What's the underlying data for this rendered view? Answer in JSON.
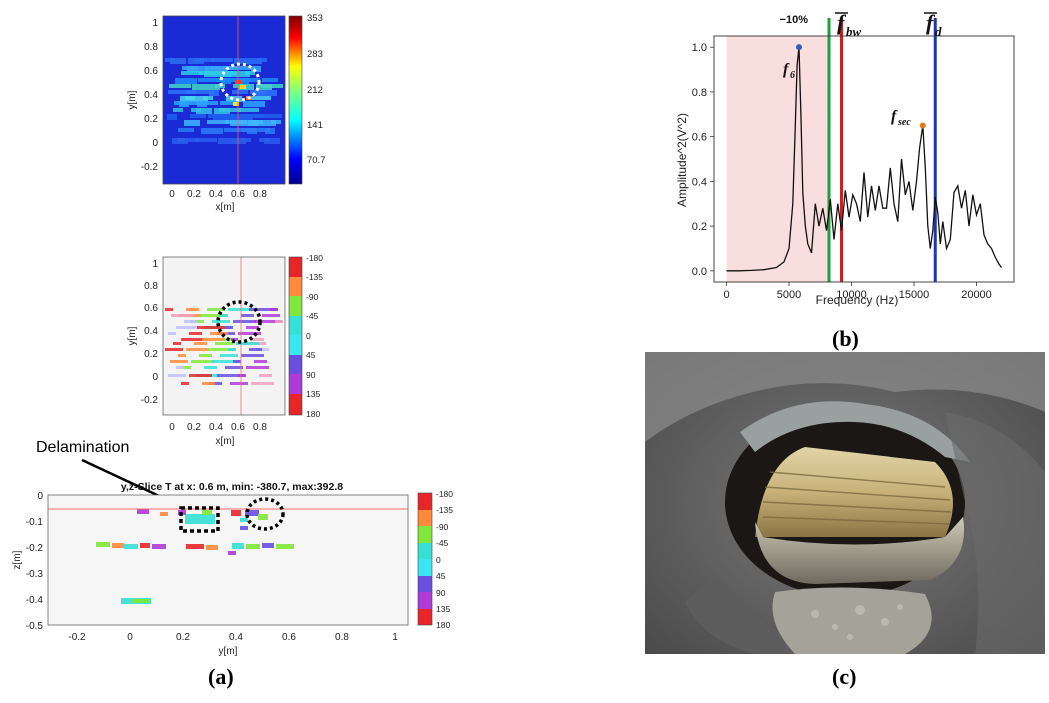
{
  "panel_a": {
    "caption": "(a)",
    "amplitude_map": {
      "xlabel": "x[m]",
      "ylabel": "y[m]",
      "xticks": [
        "0",
        "0.2",
        "0.4",
        "0.6",
        "0.8"
      ],
      "yticks": [
        "1",
        "0.8",
        "0.6",
        "0.4",
        "0.2",
        "0",
        "-0.2"
      ],
      "colorbar_ticks": [
        "353",
        "283",
        "212",
        "141",
        "70.7"
      ]
    },
    "phase_map": {
      "xlabel": "x[m]",
      "ylabel": "y[m]",
      "xticks": [
        "0",
        "0.2",
        "0.4",
        "0.6",
        "0.8"
      ],
      "yticks": [
        "1",
        "0.8",
        "0.6",
        "0.4",
        "0.2",
        "0",
        "-0.2"
      ],
      "colorbar_ticks": [
        "-180",
        "-135",
        "-90",
        "-45",
        "0",
        "45",
        "90",
        "135",
        "180"
      ]
    },
    "slice": {
      "title": "y,z-Slice T at x: 0.6 m, min: -380.7, max:392.8",
      "annotation": "Delamination",
      "xlabel": "y[m]",
      "ylabel": "z[m]",
      "xticks": [
        "-0.2",
        "0",
        "0.2",
        "0.4",
        "0.6",
        "0.8",
        "1"
      ],
      "yticks": [
        "0",
        "-0.1",
        "-0.2",
        "-0.3",
        "-0.4",
        "-0.5"
      ],
      "colorbar_ticks": [
        "-180",
        "-135",
        "-90",
        "-45",
        "0",
        "45",
        "90",
        "135",
        "180"
      ]
    }
  },
  "panel_b": {
    "caption": "(b)"
  },
  "panel_c": {
    "caption": "(c)"
  },
  "chart_data": {
    "type": "line",
    "xlabel": "Frequency (Hz)",
    "ylabel": "Amplitude^2(V^2)",
    "xlim": [
      -1000,
      23000
    ],
    "ylim": [
      -0.05,
      1.05
    ],
    "xticks": [
      "0",
      "5000",
      "10000",
      "15000",
      "20000"
    ],
    "yticks": [
      "0.0",
      "0.2",
      "0.4",
      "0.6",
      "0.8",
      "1.0"
    ],
    "shaded_region": {
      "from": 0,
      "to": 8200,
      "color": "#f9dede"
    },
    "vlines": [
      {
        "x": 8200,
        "color": "#1f9e3a",
        "label": "−10%"
      },
      {
        "x": 9200,
        "color": "#cc1f1f",
        "label": "f̄bw"
      },
      {
        "x": 16700,
        "color": "#1f35b0",
        "label": "f̄d"
      }
    ],
    "peaks": [
      {
        "x": 5800,
        "y": 1.0,
        "label": "f6",
        "color": "#2d5fb8"
      },
      {
        "x": 15700,
        "y": 0.65,
        "label": "fsec",
        "color": "#e07b1a"
      }
    ],
    "series": [
      {
        "x": [
          0,
          1000,
          2000,
          3000,
          4000,
          4600,
          5000,
          5300,
          5500,
          5650,
          5800,
          5950,
          6100,
          6300,
          6500,
          6800,
          7100,
          7400,
          7700,
          8000,
          8300,
          8600,
          8900,
          9200,
          9500,
          9800,
          10100,
          10400,
          10700,
          11000,
          11300,
          11600,
          11900,
          12200,
          12500,
          12800,
          13100,
          13400,
          13700,
          14000,
          14300,
          14600,
          14900,
          15200,
          15450,
          15700,
          15900,
          16100,
          16300,
          16500,
          16700,
          16900,
          17100,
          17300,
          17600,
          17900,
          18200,
          18500,
          18800,
          19100,
          19400,
          19700,
          20000,
          20300,
          20600,
          20900,
          21200,
          21500,
          21800,
          22000
        ],
        "y": [
          0.0,
          0.0,
          0.002,
          0.005,
          0.015,
          0.04,
          0.1,
          0.3,
          0.65,
          0.92,
          1.0,
          0.7,
          0.35,
          0.2,
          0.12,
          0.08,
          0.3,
          0.2,
          0.28,
          0.18,
          0.32,
          0.14,
          0.3,
          0.18,
          0.36,
          0.24,
          0.34,
          0.3,
          0.22,
          0.44,
          0.24,
          0.38,
          0.27,
          0.38,
          0.28,
          0.28,
          0.46,
          0.3,
          0.22,
          0.5,
          0.34,
          0.4,
          0.27,
          0.4,
          0.55,
          0.65,
          0.46,
          0.2,
          0.1,
          0.18,
          0.33,
          0.26,
          0.12,
          0.22,
          0.1,
          0.14,
          0.35,
          0.38,
          0.28,
          0.36,
          0.2,
          0.34,
          0.25,
          0.3,
          0.16,
          0.12,
          0.1,
          0.06,
          0.03,
          0.015
        ]
      }
    ]
  }
}
